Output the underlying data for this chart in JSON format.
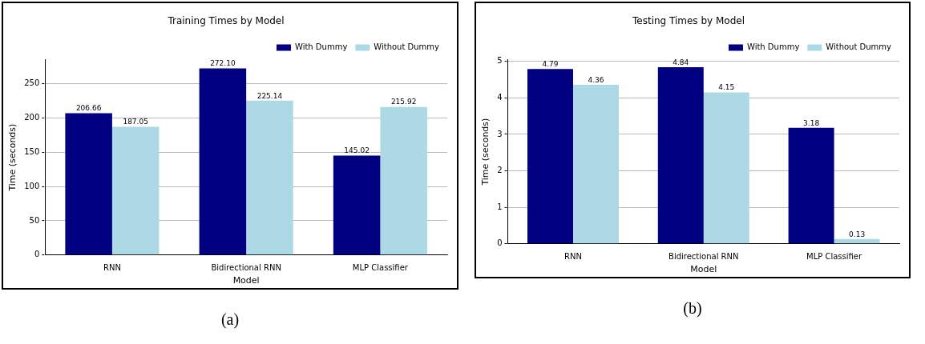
{
  "chart_data": [
    {
      "type": "bar",
      "title": "Training Times by Model",
      "xlabel": "Model",
      "ylabel": "Time (seconds)",
      "categories": [
        "RNN",
        "Bidirectional RNN",
        "MLP Classifier"
      ],
      "series": [
        {
          "name": "With Dummy",
          "color": "#000080",
          "values": [
            206.66,
            272.1,
            145.02
          ],
          "value_labels": [
            "206.66",
            "272.10",
            "145.02"
          ]
        },
        {
          "name": "Without Dummy",
          "color": "#add8e6",
          "values": [
            187.05,
            225.14,
            215.92
          ],
          "value_labels": [
            "187.05",
            "225.14",
            "215.92"
          ]
        }
      ],
      "ylim": [
        0,
        285
      ],
      "yticks": [
        0,
        50,
        100,
        150,
        200,
        250
      ],
      "grid": "y",
      "legend": "top right",
      "annotations": [
        "(a)"
      ]
    },
    {
      "type": "bar",
      "title": "Testing Times by Model",
      "xlabel": "Model",
      "ylabel": "Time (seconds)",
      "categories": [
        "RNN",
        "Bidirectional RNN",
        "MLP Classifier"
      ],
      "series": [
        {
          "name": "With Dummy",
          "color": "#000080",
          "values": [
            4.79,
            4.84,
            3.18
          ],
          "value_labels": [
            "4.79",
            "4.84",
            "3.18"
          ]
        },
        {
          "name": "Without Dummy",
          "color": "#add8e6",
          "values": [
            4.36,
            4.15,
            0.13
          ],
          "value_labels": [
            "4.36",
            "4.15",
            "0.13"
          ]
        }
      ],
      "ylim": [
        0,
        5.05
      ],
      "yticks": [
        0,
        1,
        2,
        3,
        4,
        5
      ],
      "grid": "y",
      "legend": "top right",
      "annotations": [
        "(b)"
      ]
    }
  ]
}
